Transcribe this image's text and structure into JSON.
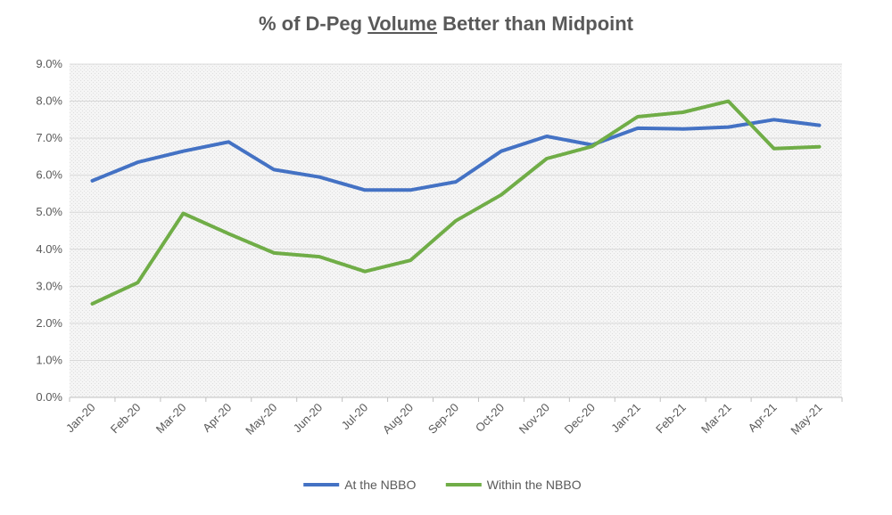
{
  "chart_data": {
    "type": "line",
    "title_parts": [
      "% of D-Peg ",
      "Volume",
      " Better than Midpoint"
    ],
    "title_underlined_index": 1,
    "categories": [
      "Jan-20",
      "Feb-20",
      "Mar-20",
      "Apr-20",
      "May-20",
      "Jun-20",
      "Jul-20",
      "Aug-20",
      "Sep-20",
      "Oct-20",
      "Nov-20",
      "Dec-20",
      "Jan-21",
      "Feb-21",
      "Mar-21",
      "Apr-21",
      "May-21"
    ],
    "y_ticks": [
      "0.0%",
      "1.0%",
      "2.0%",
      "3.0%",
      "4.0%",
      "5.0%",
      "6.0%",
      "7.0%",
      "8.0%",
      "9.0%"
    ],
    "ylim": [
      0,
      9
    ],
    "series": [
      {
        "name": "At the NBBO",
        "color": "#4472C4",
        "values": [
          5.85,
          6.35,
          6.65,
          6.9,
          6.15,
          5.95,
          5.6,
          5.6,
          5.82,
          6.65,
          7.05,
          6.82,
          7.27,
          7.25,
          7.3,
          7.5,
          7.35
        ]
      },
      {
        "name": "Within the NBBO",
        "color": "#70AD47",
        "values": [
          2.53,
          3.1,
          4.97,
          4.42,
          3.9,
          3.8,
          3.4,
          3.7,
          4.77,
          5.47,
          6.45,
          6.78,
          7.58,
          7.7,
          8.0,
          6.72,
          6.77
        ]
      }
    ],
    "grid": true,
    "legend": "bottom"
  }
}
